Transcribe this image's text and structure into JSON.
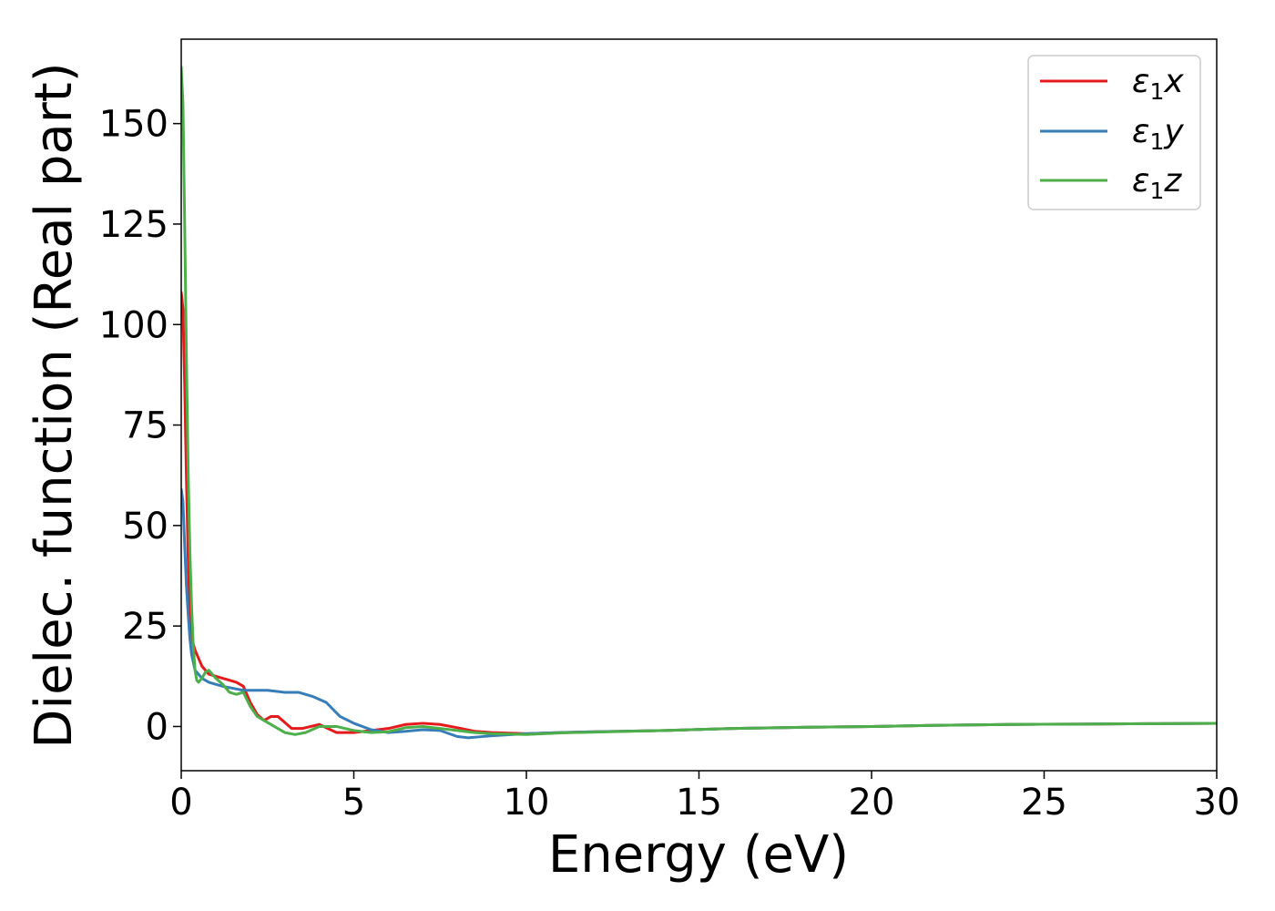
{
  "chart_data": {
    "type": "line",
    "title": "",
    "xlabel": "Energy (eV)",
    "ylabel": "Dielec. function (Real part)",
    "xlim": [
      0,
      30
    ],
    "ylim": [
      -11,
      171
    ],
    "xticks": [
      0,
      5,
      10,
      15,
      20,
      25,
      30
    ],
    "yticks": [
      0,
      25,
      50,
      75,
      100,
      125,
      150
    ],
    "grid": false,
    "legend": "top-right",
    "series": [
      {
        "name": "ε1x",
        "label_main": "ε",
        "label_sub": "1",
        "label_suffix": "x",
        "color": "#e41a1c",
        "x": [
          0,
          0.05,
          0.1,
          0.15,
          0.2,
          0.25,
          0.3,
          0.4,
          0.5,
          0.6,
          0.8,
          1.0,
          1.2,
          1.4,
          1.6,
          1.8,
          2.0,
          2.2,
          2.4,
          2.6,
          2.8,
          3.0,
          3.2,
          3.5,
          4.0,
          4.5,
          5.0,
          5.5,
          6.0,
          6.5,
          7.0,
          7.5,
          8.0,
          8.5,
          9.0,
          10.0,
          11.0,
          12.0,
          14.0,
          16.0,
          18.0,
          20.0,
          22.0,
          24.0,
          26.0,
          28.0,
          30.0
        ],
        "y": [
          108,
          104,
          85,
          62,
          42,
          28,
          22,
          19,
          17,
          15,
          13,
          12.5,
          12,
          11.5,
          11,
          10,
          6,
          3,
          1.5,
          2.5,
          2.5,
          1.0,
          -0.5,
          -0.5,
          0.5,
          -1.5,
          -1.5,
          -1.0,
          -0.5,
          0.5,
          0.8,
          0.5,
          -0.3,
          -1.2,
          -1.5,
          -1.8,
          -1.5,
          -1.3,
          -1.0,
          -0.5,
          -0.2,
          0.0,
          0.3,
          0.5,
          0.6,
          0.7,
          0.8
        ]
      },
      {
        "name": "ε1y",
        "label_main": "ε",
        "label_sub": "1",
        "label_suffix": "y",
        "color": "#377eb8",
        "x": [
          0,
          0.05,
          0.1,
          0.15,
          0.2,
          0.25,
          0.3,
          0.4,
          0.5,
          0.6,
          0.8,
          1.0,
          1.2,
          1.5,
          1.8,
          2.0,
          2.5,
          3.0,
          3.4,
          3.8,
          4.2,
          4.6,
          5.0,
          5.5,
          6.0,
          6.5,
          7.0,
          7.5,
          8.0,
          8.3,
          8.6,
          9.0,
          10.0,
          11.0,
          12.0,
          14.0,
          16.0,
          18.0,
          20.0,
          22.0,
          24.0,
          26.0,
          28.0,
          30.0
        ],
        "y": [
          59,
          56,
          45,
          35,
          28,
          22,
          18,
          14,
          13,
          12,
          11,
          10.5,
          10,
          9.5,
          9,
          9,
          9,
          8.5,
          8.5,
          7.5,
          6,
          2.5,
          0.8,
          -0.8,
          -1.5,
          -1.2,
          -0.8,
          -1.0,
          -2.5,
          -2.8,
          -2.6,
          -2.3,
          -1.8,
          -1.5,
          -1.3,
          -1.0,
          -0.5,
          -0.2,
          0.0,
          0.3,
          0.5,
          0.6,
          0.7,
          0.8
        ]
      },
      {
        "name": "ε1z",
        "label_main": "ε",
        "label_sub": "1",
        "label_suffix": "z",
        "color": "#4daf4a",
        "x": [
          0,
          0.05,
          0.1,
          0.15,
          0.2,
          0.25,
          0.3,
          0.35,
          0.4,
          0.45,
          0.5,
          0.6,
          0.7,
          0.8,
          0.9,
          1.0,
          1.2,
          1.4,
          1.6,
          1.8,
          2.0,
          2.2,
          2.5,
          2.8,
          3.0,
          3.3,
          3.6,
          4.0,
          4.5,
          5.0,
          5.5,
          6.0,
          6.5,
          7.0,
          7.5,
          8.0,
          8.5,
          9.0,
          10.0,
          11.0,
          12.0,
          14.0,
          16.0,
          18.0,
          20.0,
          22.0,
          24.0,
          26.0,
          28.0,
          30.0
        ],
        "y": [
          164,
          155,
          125,
          92,
          64,
          44,
          30,
          20,
          14,
          11.5,
          11,
          12,
          13.5,
          14,
          13,
          12,
          10.5,
          8.5,
          8,
          8.5,
          5.0,
          2.5,
          1.0,
          -0.5,
          -1.5,
          -2.0,
          -1.5,
          0.0,
          0.0,
          -1.0,
          -1.5,
          -1.3,
          -0.3,
          0.0,
          -0.5,
          -1.0,
          -1.5,
          -1.8,
          -2.0,
          -1.6,
          -1.4,
          -1.0,
          -0.5,
          -0.2,
          0.0,
          0.3,
          0.5,
          0.6,
          0.7,
          0.8
        ]
      }
    ]
  }
}
